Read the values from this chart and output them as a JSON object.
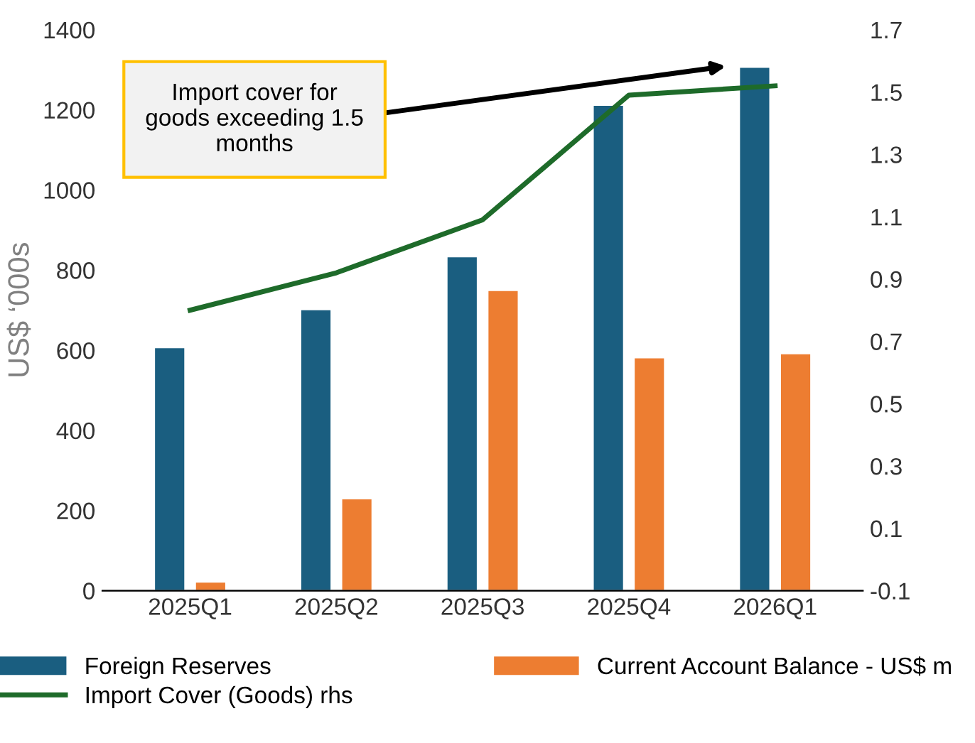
{
  "chart_data": {
    "type": "bar",
    "categories": [
      "2025Q1",
      "2025Q2",
      "2025Q3",
      "2025Q4",
      "2026Q1"
    ],
    "series": [
      {
        "name": "Foreign Reserves",
        "color": "#1a5e80",
        "values": [
          605,
          700,
          832,
          1210,
          1305
        ]
      },
      {
        "name": "Current Account Balance - US$ m",
        "color": "#ed7d31",
        "values": [
          20,
          228,
          748,
          580,
          590
        ]
      },
      {
        "name": "Import Cover (Goods) rhs",
        "color": "#1e6b2a",
        "type": "line",
        "axis": "y2",
        "values": [
          0.8,
          0.92,
          1.09,
          1.49,
          1.52
        ]
      }
    ],
    "ylabel": "US$ ‘000s",
    "ylim": [
      0,
      1400
    ],
    "yticks": [
      0,
      200,
      400,
      600,
      800,
      1000,
      1200,
      1400
    ],
    "y2lim": [
      -0.1,
      1.7
    ],
    "y2ticks": [
      -0.1,
      0.1,
      0.3,
      0.5,
      0.7,
      0.9,
      1.1,
      1.3,
      1.5,
      1.7
    ],
    "annotations": [
      "Import cover for\ngoods exceeding 1.5\nmonths"
    ],
    "legend": "bottom",
    "grid": false,
    "marker": "none",
    "line_style": "solid"
  }
}
